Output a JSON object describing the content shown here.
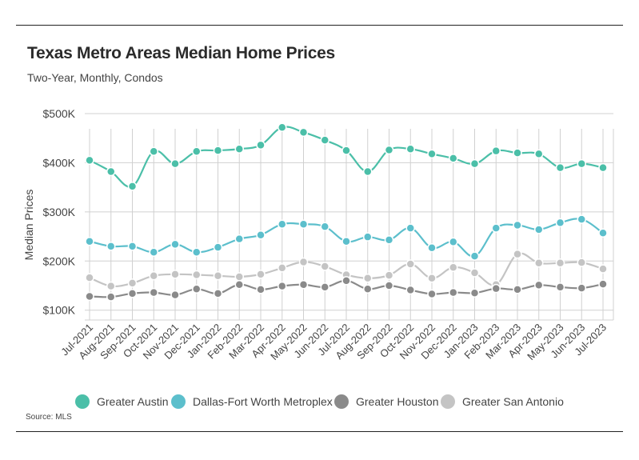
{
  "title": "Texas Metro Areas Median Home Prices",
  "subtitle": "Two-Year, Monthly, Condos",
  "source": "Source: MLS",
  "chart_data": {
    "type": "line",
    "title": "Texas Metro Areas Median Home Prices",
    "subtitle": "Two-Year, Monthly, Condos",
    "xlabel": "",
    "ylabel": "Median Prices",
    "ylim": [
      80000,
      500000
    ],
    "yticks": [
      100000,
      200000,
      300000,
      400000,
      500000
    ],
    "ytick_labels": [
      "$100K",
      "$200K",
      "$300K",
      "$400K",
      "$500K"
    ],
    "grid": true,
    "legend_position": "bottom",
    "categories": [
      "Jul-2021",
      "Aug-2021",
      "Sep-2021",
      "Oct-2021",
      "Nov-2021",
      "Dec-2021",
      "Jan-2022",
      "Feb-2022",
      "Mar-2022",
      "Apr-2022",
      "May-2022",
      "Jun-2022",
      "Jul-2022",
      "Aug-2022",
      "Sep-2022",
      "Oct-2022",
      "Nov-2022",
      "Dec-2022",
      "Jan-2023",
      "Feb-2023",
      "Mar-2023",
      "Apr-2023",
      "May-2023",
      "Jun-2023",
      "Jul-2023"
    ],
    "series": [
      {
        "name": "Greater Austin",
        "color": "#4bbfa8",
        "values": [
          405000,
          382000,
          352000,
          423000,
          398000,
          423000,
          425000,
          428000,
          436000,
          472000,
          462000,
          446000,
          425000,
          382000,
          426000,
          428000,
          418000,
          409000,
          398000,
          424000,
          420000,
          418000,
          390000,
          398000,
          390000
        ]
      },
      {
        "name": "Dallas-Fort Worth Metroplex",
        "color": "#5cbfcc",
        "values": [
          240000,
          230000,
          230000,
          218000,
          234000,
          218000,
          228000,
          245000,
          253000,
          275000,
          275000,
          270000,
          240000,
          249000,
          243000,
          267000,
          227000,
          239000,
          210000,
          267000,
          273000,
          264000,
          278000,
          285000,
          257000
        ]
      },
      {
        "name": "Greater Houston",
        "color": "#8a8a8a",
        "values": [
          128000,
          127000,
          134000,
          136000,
          131000,
          143000,
          134000,
          152000,
          142000,
          149000,
          152000,
          147000,
          160000,
          143000,
          150000,
          141000,
          133000,
          136000,
          135000,
          144000,
          142000,
          151000,
          147000,
          145000,
          153000
        ]
      },
      {
        "name": "Greater San Antonio",
        "color": "#c4c4c4",
        "values": [
          166000,
          149000,
          155000,
          170000,
          173000,
          172000,
          170000,
          168000,
          173000,
          186000,
          198000,
          189000,
          172000,
          165000,
          171000,
          194000,
          165000,
          187000,
          176000,
          152000,
          214000,
          196000,
          196000,
          197000,
          184000
        ]
      }
    ]
  }
}
